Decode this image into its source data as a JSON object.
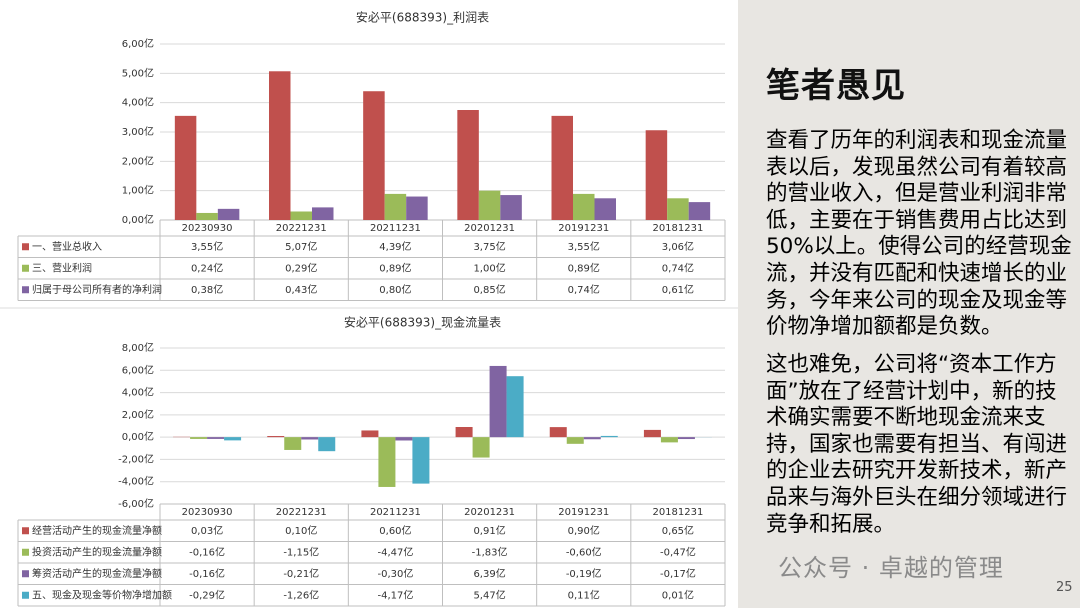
{
  "chart_data": [
    {
      "type": "bar",
      "title": "安必平(688393)_利润表",
      "categories": [
        "20230930",
        "20221231",
        "20211231",
        "20201231",
        "20191231",
        "20181231"
      ],
      "series": [
        {
          "name": "一、营业总收入",
          "color": "#c0504d",
          "values": [
            3.55,
            5.07,
            4.39,
            3.75,
            3.55,
            3.06
          ],
          "value_labels": [
            "3,55亿",
            "5,07亿",
            "4,39亿",
            "3,75亿",
            "3,55亿",
            "3,06亿"
          ]
        },
        {
          "name": "三、营业利润",
          "color": "#9bbb59",
          "values": [
            0.24,
            0.29,
            0.89,
            1.0,
            0.89,
            0.74
          ],
          "value_labels": [
            "0,24亿",
            "0,29亿",
            "0,89亿",
            "1,00亿",
            "0,89亿",
            "0,74亿"
          ]
        },
        {
          "name": "归属于母公司所有者的净利润",
          "color": "#8064a2",
          "values": [
            0.38,
            0.43,
            0.8,
            0.85,
            0.74,
            0.61
          ],
          "value_labels": [
            "0,38亿",
            "0,43亿",
            "0,80亿",
            "0,85亿",
            "0,74亿",
            "0,61亿"
          ]
        }
      ],
      "ylim": [
        0,
        6
      ],
      "yticks": [
        {
          "value": 0,
          "label": "0,00亿"
        },
        {
          "value": 1,
          "label": "1,00亿"
        },
        {
          "value": 2,
          "label": "2,00亿"
        },
        {
          "value": 3,
          "label": "3,00亿"
        },
        {
          "value": 4,
          "label": "4,00亿"
        },
        {
          "value": 5,
          "label": "5,00亿"
        },
        {
          "value": 6,
          "label": "6,00亿"
        }
      ],
      "grid": true
    },
    {
      "type": "bar",
      "title": "安必平(688393)_现金流量表",
      "categories": [
        "20230930",
        "20221231",
        "20211231",
        "20201231",
        "20191231",
        "20181231"
      ],
      "series": [
        {
          "name": "经营活动产生的现金流量净额",
          "color": "#c0504d",
          "values": [
            0.03,
            0.1,
            0.6,
            0.91,
            0.9,
            0.65
          ],
          "value_labels": [
            "0,03亿",
            "0,10亿",
            "0,60亿",
            "0,91亿",
            "0,90亿",
            "0,65亿"
          ]
        },
        {
          "name": "投资活动产生的现金流量净额",
          "color": "#9bbb59",
          "values": [
            -0.16,
            -1.15,
            -4.47,
            -1.83,
            -0.6,
            -0.47
          ],
          "value_labels": [
            "-0,16亿",
            "-1,15亿",
            "-4,47亿",
            "-1,83亿",
            "-0,60亿",
            "-0,47亿"
          ]
        },
        {
          "name": "筹资活动产生的现金流量净额",
          "color": "#8064a2",
          "values": [
            -0.16,
            -0.21,
            -0.3,
            6.39,
            -0.19,
            -0.17
          ],
          "value_labels": [
            "-0,16亿",
            "-0,21亿",
            "-0,30亿",
            "6,39亿",
            "-0,19亿",
            "-0,17亿"
          ]
        },
        {
          "name": "五、现金及现金等价物净增加额",
          "color": "#4bacc6",
          "values": [
            -0.29,
            -1.26,
            -4.17,
            5.47,
            0.11,
            0.01
          ],
          "value_labels": [
            "-0,29亿",
            "-1,26亿",
            "-4,17亿",
            "5,47亿",
            "0,11亿",
            "0,01亿"
          ]
        }
      ],
      "ylim": [
        -6,
        8
      ],
      "yticks": [
        {
          "value": -6,
          "label": "-6,00亿"
        },
        {
          "value": -4,
          "label": "-4,00亿"
        },
        {
          "value": -2,
          "label": "-2,00亿"
        },
        {
          "value": 0,
          "label": "0,00亿"
        },
        {
          "value": 2,
          "label": "2,00亿"
        },
        {
          "value": 4,
          "label": "4,00亿"
        },
        {
          "value": 6,
          "label": "6,00亿"
        },
        {
          "value": 8,
          "label": "8,00亿"
        }
      ],
      "grid": true
    }
  ],
  "panel": {
    "heading": "笔者愚见",
    "paragraphs": [
      "查看了历年的利润表和现金流量表以后，发现虽然公司有着较高的营业收入，但是营业利润非常低，主要在于销售费用占比达到50%以上。使得公司的经营现金流，并没有匹配和快速增长的业务，今年来公司的现金及现金等价物净增加额都是负数。",
      "这也难免，公司将“资本工作方面”放在了经营计划中，新的技术确实需要不断地现金流来支持，国家也需要有担当、有闯进的企业去研究开发新技术，新产品来与海外巨头在细分领域进行竞争和拓展。"
    ]
  },
  "watermark": "公众号 · 卓越的管理",
  "page_number": "25"
}
